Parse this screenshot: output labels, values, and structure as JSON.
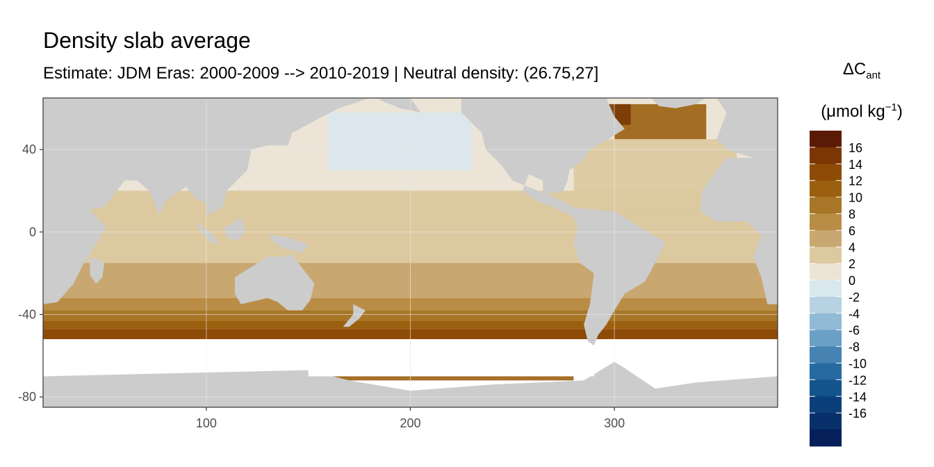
{
  "title": "Density slab average",
  "subtitle": "Estimate: JDM Eras: 2000-2009 --> 2010-2019 | Neutral density: (26.75,27]",
  "legend": {
    "symbol": "ΔC",
    "symbol_sub": "ant",
    "unit_prefix": "(μmol kg",
    "unit_sup": "−1",
    "unit_suffix": ")",
    "labels": [
      "16",
      "14",
      "12",
      "10",
      "8",
      "6",
      "4",
      "2",
      "0",
      "-2",
      "-4",
      "-6",
      "-8",
      "-10",
      "-12",
      "-14",
      "-16"
    ],
    "colors": [
      "#5b1a05",
      "#7a3603",
      "#8e4b06",
      "#9b600f",
      "#a87627",
      "#b98d45",
      "#c9a770",
      "#ddc9a0",
      "#ece4d6",
      "#d9e7ee",
      "#b7d2e2",
      "#91bad6",
      "#6a9fc6",
      "#4682b2",
      "#276aa0",
      "#13548c",
      "#0a3f7a",
      "#07306a",
      "#041f5a"
    ]
  },
  "chart_data": {
    "type": "heatmap",
    "x_ticks": [
      "100",
      "200",
      "300"
    ],
    "y_ticks": [
      "40",
      "0",
      "-40",
      "-80"
    ],
    "xlim": [
      20,
      380
    ],
    "ylim": [
      -85,
      65
    ],
    "land_color": "#cccccc",
    "nodata_color": "#ffffff",
    "zonal_bands": [
      {
        "lat": [
          40,
          65
        ],
        "value": 1.2
      },
      {
        "lat": [
          20,
          40
        ],
        "value": 1.0
      },
      {
        "lat": [
          0,
          20
        ],
        "value": 2.5
      },
      {
        "lat": [
          -15,
          0
        ],
        "value": 3.5
      },
      {
        "lat": [
          -25,
          -15
        ],
        "value": 5.0
      },
      {
        "lat": [
          -32,
          -25
        ],
        "value": 6.0
      },
      {
        "lat": [
          -38,
          -32
        ],
        "value": 8.0
      },
      {
        "lat": [
          -43,
          -38
        ],
        "value": 9.5
      },
      {
        "lat": [
          -47,
          -43
        ],
        "value": 12.0
      },
      {
        "lat": [
          -52,
          -47
        ],
        "value": 14.0
      }
    ],
    "extra_regions": [
      {
        "name": "subpolar-north-atlantic",
        "lon": [
          300,
          345
        ],
        "lat": [
          45,
          62
        ],
        "value": 12.0
      },
      {
        "name": "labrador-sea",
        "lon": [
          292,
          308
        ],
        "lat": [
          52,
          62
        ],
        "value": 16.0
      },
      {
        "name": "north-pacific-negative",
        "lon": [
          160,
          230
        ],
        "lat": [
          30,
          58
        ],
        "value": -1.0
      },
      {
        "name": "north-atlantic-subtropics",
        "lon": [
          280,
          360
        ],
        "lat": [
          10,
          45
        ],
        "value": 3.5
      },
      {
        "name": "antarctic-coast-strip",
        "lon": [
          160,
          280
        ],
        "lat": [
          -72,
          -69
        ],
        "value": 12.0
      }
    ]
  }
}
